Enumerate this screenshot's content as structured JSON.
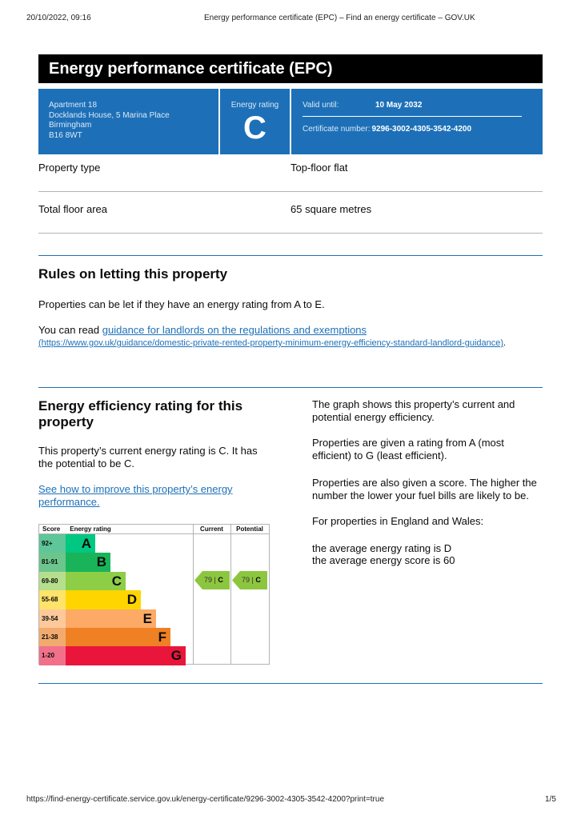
{
  "browser": {
    "datetime": "20/10/2022, 09:16",
    "page_title": "Energy performance certificate (EPC) – Find an energy certificate – GOV.UK",
    "url": "https://find-energy-certificate.service.gov.uk/energy-certificate/9296-3002-4305-3542-4200?print=true",
    "page_number": "1/5"
  },
  "title": "Energy performance certificate (EPC)",
  "summary": {
    "address": [
      "Apartment 18",
      "Docklands House, 5 Marina Place",
      "Birmingham",
      "B16 8WT"
    ],
    "rating_label": "Energy rating",
    "rating": "C",
    "valid_label": "Valid until:",
    "valid_date": "10 May 2032",
    "cert_label": "Certificate number:",
    "cert_number": "9296-3002-4305-3542-4200"
  },
  "property": [
    {
      "label": "Property type",
      "value": "Top-floor flat"
    },
    {
      "label": "Total floor area",
      "value": "65 square metres"
    }
  ],
  "letting": {
    "heading": "Rules on letting this property",
    "p1": "Properties can be let if they have an energy rating from A to E.",
    "p2_prefix": "You can read ",
    "link": "guidance for landlords on the regulations and exemptions",
    "link_url": "(https://www.gov.uk/guidance/domestic-private-rented-property-minimum-energy-efficiency-standard-landlord-guidance)",
    "p2_suffix": "."
  },
  "efficiency": {
    "heading": "Energy efficiency rating for this property",
    "p1": "This property’s current energy rating is C. It has the potential to be C.",
    "link": "See how to improve this property’s energy performance.",
    "right": [
      "The graph shows this property’s current and potential energy efficiency.",
      "Properties are given a rating from A (most efficient) to G (least efficient).",
      "Properties are also given a score. The higher the number the lower your fuel bills are likely to be.",
      "For properties in England and Wales:"
    ],
    "avg1": "the average energy rating is D",
    "avg2": "the average energy score is 60"
  },
  "chart": {
    "headers": {
      "score": "Score",
      "rating": "Energy rating",
      "current": "Current",
      "potential": "Potential"
    },
    "bands": [
      {
        "score": "92+",
        "letter": "A",
        "color": "#00c781",
        "score_bg": "#5ec699"
      },
      {
        "score": "81-91",
        "letter": "B",
        "color": "#19b459",
        "score_bg": "#6cc58d"
      },
      {
        "score": "69-80",
        "letter": "C",
        "color": "#8dce46",
        "score_bg": "#b5df8c"
      },
      {
        "score": "55-68",
        "letter": "D",
        "color": "#ffd500",
        "score_bg": "#ffe36a"
      },
      {
        "score": "39-54",
        "letter": "E",
        "color": "#fcaa65",
        "score_bg": "#fdc99a"
      },
      {
        "score": "21-38",
        "letter": "F",
        "color": "#ef8023",
        "score_bg": "#f3aa6e"
      },
      {
        "score": "1-20",
        "letter": "G",
        "color": "#e9153b",
        "score_bg": "#f1718a"
      }
    ],
    "current": {
      "score": "79",
      "letter": "C"
    },
    "potential": {
      "score": "79",
      "letter": "C"
    }
  }
}
